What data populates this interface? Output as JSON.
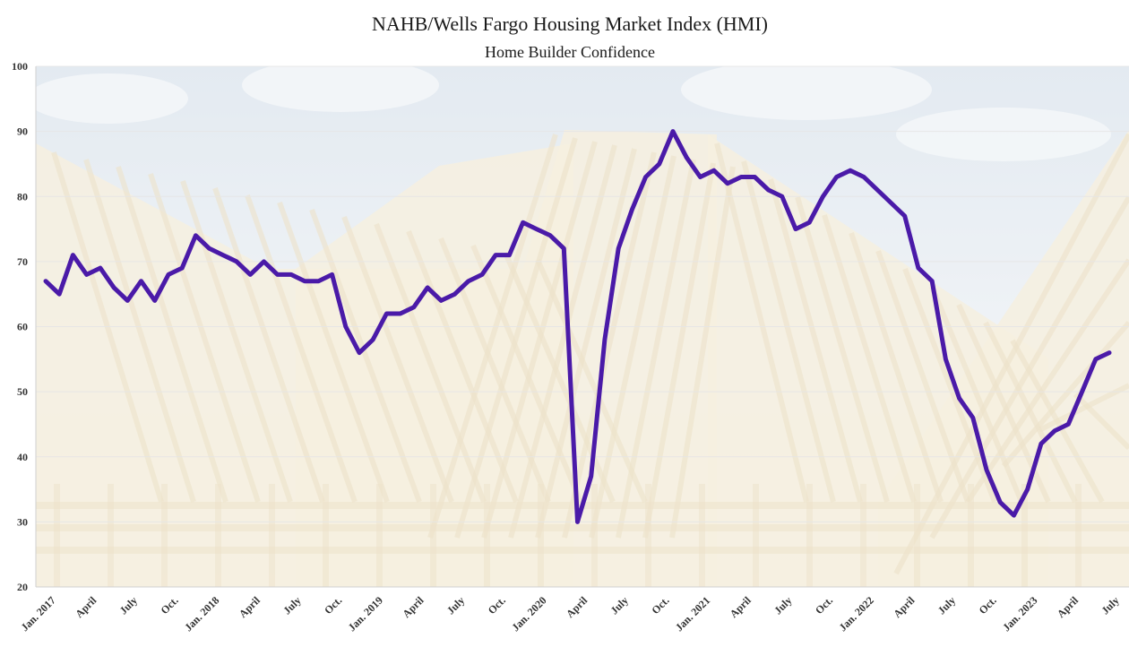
{
  "title": "NAHB/Wells Fargo Housing Market Index (HMI)",
  "subtitle": "Home Builder Confidence",
  "colors": {
    "line": "#4a1aa8",
    "sky": "#dbe4ee",
    "wood": "#f1e7cf",
    "wood_dark": "#e4d4ae",
    "grid": "#e6e6e6"
  },
  "chart_data": {
    "type": "line",
    "title": "NAHB/Wells Fargo Housing Market Index (HMI)",
    "subtitle": "Home Builder Confidence",
    "xlabel": "",
    "ylabel": "",
    "ylim": [
      20,
      100
    ],
    "yticks": [
      20,
      30,
      40,
      50,
      60,
      70,
      80,
      90,
      100
    ],
    "grid": true,
    "xtick_labels": [
      {
        "index": 0,
        "label": "Jan. 2017"
      },
      {
        "index": 3,
        "label": "April"
      },
      {
        "index": 6,
        "label": "July"
      },
      {
        "index": 9,
        "label": "Oct."
      },
      {
        "index": 12,
        "label": "Jan. 2018"
      },
      {
        "index": 15,
        "label": "April"
      },
      {
        "index": 18,
        "label": "July"
      },
      {
        "index": 21,
        "label": "Oct."
      },
      {
        "index": 24,
        "label": "Jan. 2019"
      },
      {
        "index": 27,
        "label": "April"
      },
      {
        "index": 30,
        "label": "July"
      },
      {
        "index": 33,
        "label": "Oct."
      },
      {
        "index": 36,
        "label": "Jan. 2020"
      },
      {
        "index": 39,
        "label": "April"
      },
      {
        "index": 42,
        "label": "July"
      },
      {
        "index": 45,
        "label": "Oct."
      },
      {
        "index": 48,
        "label": "Jan. 2021"
      },
      {
        "index": 51,
        "label": "April"
      },
      {
        "index": 54,
        "label": "July"
      },
      {
        "index": 57,
        "label": "Oct."
      },
      {
        "index": 60,
        "label": "Jan. 2022"
      },
      {
        "index": 63,
        "label": "April"
      },
      {
        "index": 66,
        "label": "July"
      },
      {
        "index": 69,
        "label": "Oct."
      },
      {
        "index": 72,
        "label": "Jan. 2023"
      },
      {
        "index": 75,
        "label": "April"
      },
      {
        "index": 78,
        "label": "July"
      }
    ],
    "series": [
      {
        "values": [
          67,
          65,
          71,
          68,
          69,
          66,
          64,
          67,
          64,
          68,
          69,
          74,
          72,
          71,
          70,
          68,
          70,
          68,
          68,
          67,
          67,
          68,
          60,
          56,
          58,
          62,
          62,
          63,
          66,
          64,
          65,
          67,
          68,
          71,
          71,
          76,
          75,
          74,
          72,
          30,
          37,
          58,
          72,
          78,
          83,
          85,
          90,
          86,
          83,
          84,
          82,
          83,
          83,
          81,
          80,
          75,
          76,
          80,
          83,
          84,
          83,
          81,
          79,
          77,
          69,
          67,
          55,
          49,
          46,
          38,
          33,
          31,
          35,
          42,
          44,
          45,
          50,
          55,
          56
        ]
      }
    ]
  }
}
